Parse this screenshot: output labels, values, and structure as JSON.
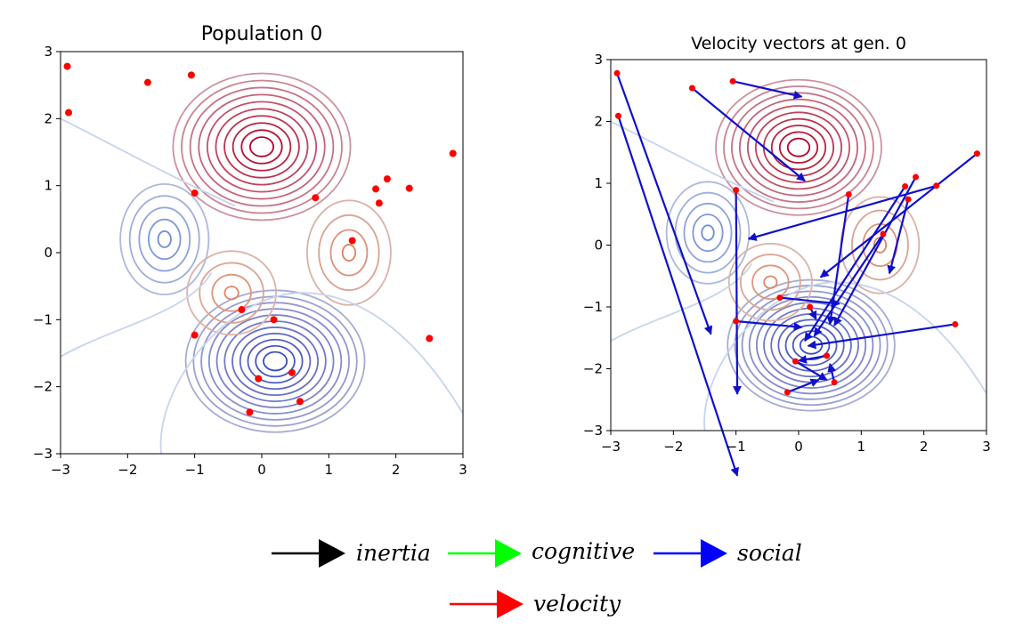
{
  "chart_data": [
    {
      "type": "scatter",
      "title": "Population 0",
      "xlim": [
        -3,
        3
      ],
      "ylim": [
        -3,
        3
      ],
      "xticks": [
        "−3",
        "−2",
        "−1",
        "0",
        "1",
        "2",
        "3"
      ],
      "yticks": [
        "−3",
        "−2",
        "−1",
        "0",
        "1",
        "2",
        "3"
      ],
      "grid": false,
      "point_color": "#ff0000",
      "points": [
        {
          "x": -2.9,
          "y": 2.78
        },
        {
          "x": -2.88,
          "y": 2.09
        },
        {
          "x": -1.7,
          "y": 2.54
        },
        {
          "x": -1.05,
          "y": 2.65
        },
        {
          "x": 2.85,
          "y": 1.48
        },
        {
          "x": 1.87,
          "y": 1.1
        },
        {
          "x": 1.7,
          "y": 0.95
        },
        {
          "x": 2.2,
          "y": 0.96
        },
        {
          "x": 1.75,
          "y": 0.74
        },
        {
          "x": 0.8,
          "y": 0.82
        },
        {
          "x": -1.0,
          "y": 0.89
        },
        {
          "x": 1.35,
          "y": 0.18
        },
        {
          "x": -0.3,
          "y": -0.85
        },
        {
          "x": 0.18,
          "y": -1.0
        },
        {
          "x": -1.0,
          "y": -1.23
        },
        {
          "x": 2.5,
          "y": -1.28
        },
        {
          "x": 0.45,
          "y": -1.79
        },
        {
          "x": -0.05,
          "y": -1.88
        },
        {
          "x": 0.57,
          "y": -2.22
        },
        {
          "x": -0.18,
          "y": -2.38
        }
      ],
      "contour_colors": [
        "#b40426",
        "#3b4cc0"
      ]
    },
    {
      "type": "scatter",
      "title": "Velocity vectors at gen. 0",
      "xlim": [
        -3,
        3
      ],
      "ylim": [
        -3,
        3
      ],
      "xticks": [
        "−3",
        "−2",
        "−1",
        "0",
        "1",
        "2",
        "3"
      ],
      "yticks": [
        "−3",
        "−2",
        "−1",
        "0",
        "1",
        "2",
        "3"
      ],
      "grid": false,
      "point_color": "#ff0000",
      "arrow_color": "#1010cc",
      "vectors": [
        {
          "x": -2.9,
          "y": 2.78,
          "dx": 1.5,
          "dy": -4.22
        },
        {
          "x": -2.88,
          "y": 2.09,
          "dx": 1.9,
          "dy": -5.82
        },
        {
          "x": -1.7,
          "y": 2.54,
          "dx": 1.8,
          "dy": -1.5
        },
        {
          "x": -1.05,
          "y": 2.65,
          "dx": 1.1,
          "dy": -0.25
        },
        {
          "x": 2.85,
          "y": 1.48,
          "dx": -2.5,
          "dy": -2.0
        },
        {
          "x": 1.87,
          "y": 1.1,
          "dx": -1.3,
          "dy": -2.4
        },
        {
          "x": 1.7,
          "y": 0.95,
          "dx": -1.6,
          "dy": -2.5
        },
        {
          "x": 2.2,
          "y": 0.96,
          "dx": -3.0,
          "dy": -0.86
        },
        {
          "x": 1.75,
          "y": 0.74,
          "dx": -0.3,
          "dy": -1.2
        },
        {
          "x": 0.8,
          "y": 0.82,
          "dx": -0.3,
          "dy": -2.1
        },
        {
          "x": -1.0,
          "y": 0.89,
          "dx": 0.02,
          "dy": -3.3
        },
        {
          "x": 1.35,
          "y": 0.18,
          "dx": -1.1,
          "dy": -1.65
        },
        {
          "x": -0.3,
          "y": -0.85,
          "dx": 0.95,
          "dy": -0.1
        },
        {
          "x": 0.18,
          "y": -1.0,
          "dx": 0.1,
          "dy": -0.2
        },
        {
          "x": -1.0,
          "y": -1.23,
          "dx": 1.05,
          "dy": -0.1
        },
        {
          "x": 2.5,
          "y": -1.28,
          "dx": -2.35,
          "dy": -0.35
        },
        {
          "x": 0.45,
          "y": -1.79,
          "dx": -0.45,
          "dy": -0.08
        },
        {
          "x": -0.05,
          "y": -1.88,
          "dx": 0.5,
          "dy": -0.3
        },
        {
          "x": 0.57,
          "y": -2.22,
          "dx": -0.07,
          "dy": 0.3
        },
        {
          "x": -0.18,
          "y": -2.38,
          "dx": 0.5,
          "dy": 0.2
        }
      ]
    }
  ],
  "legend": [
    {
      "label": "inertia",
      "color": "#000000"
    },
    {
      "label": "cognitive",
      "color": "#00ff00"
    },
    {
      "label": "social",
      "color": "#0000ff"
    },
    {
      "label": "velocity",
      "color": "#ff0000"
    }
  ]
}
